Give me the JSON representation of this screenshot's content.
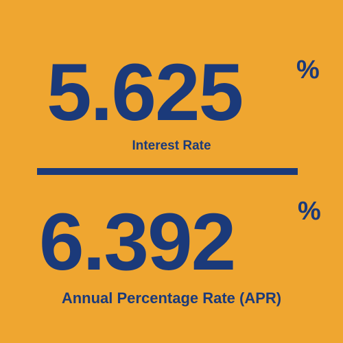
{
  "interest_rate": {
    "value": "5.625",
    "unit": "%",
    "label": "Interest Rate"
  },
  "apr": {
    "value": "6.392",
    "unit": "%",
    "label": "Annual Percentage Rate (APR)"
  },
  "colors": {
    "background": "#EFA630",
    "text": "#1B3A7A"
  }
}
